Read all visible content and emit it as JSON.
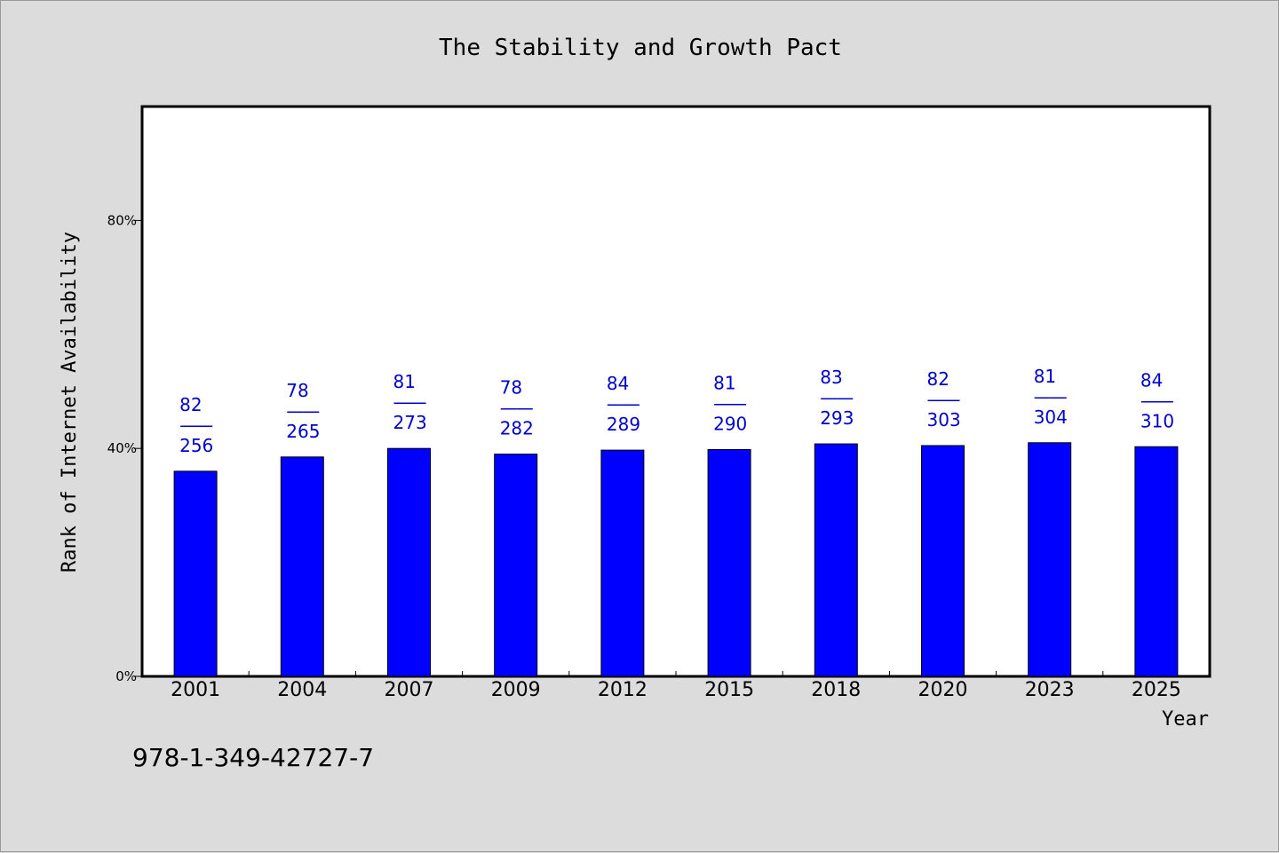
{
  "chart_data": {
    "type": "bar",
    "title": "The Stability and Growth Pact",
    "xlabel": "Year",
    "ylabel": "Rank of Internet Availability",
    "categories": [
      "2001",
      "2004",
      "2007",
      "2009",
      "2012",
      "2015",
      "2018",
      "2020",
      "2023",
      "2025"
    ],
    "values": [
      36,
      38.5,
      40,
      39,
      39.7,
      39.8,
      40.8,
      40.5,
      41,
      40.3
    ],
    "ylim": [
      0,
      100
    ],
    "yticks": [
      0,
      40,
      80
    ],
    "ytick_labels": [
      "0%",
      "40%",
      "80%"
    ],
    "data_labels": [
      {
        "top": "82",
        "sep": "——",
        "bottom": "256"
      },
      {
        "top": "78",
        "sep": "——",
        "bottom": "265"
      },
      {
        "top": "81",
        "sep": "——",
        "bottom": "273"
      },
      {
        "top": "78",
        "sep": "——",
        "bottom": "282"
      },
      {
        "top": "84",
        "sep": "——",
        "bottom": "289"
      },
      {
        "top": "81",
        "sep": "——",
        "bottom": "290"
      },
      {
        "top": "83",
        "sep": "——",
        "bottom": "293"
      },
      {
        "top": "82",
        "sep": "——",
        "bottom": "303"
      },
      {
        "top": "81",
        "sep": "——",
        "bottom": "304"
      },
      {
        "top": "84",
        "sep": "——",
        "bottom": "310"
      }
    ],
    "bar_color": "#0000ff",
    "label_color": "#0000cc",
    "grid": false,
    "legend": "none"
  },
  "footnote": "978-1-349-42727-7",
  "colors": {
    "background": "#dcdcdc",
    "plot_background": "#ffffff"
  }
}
